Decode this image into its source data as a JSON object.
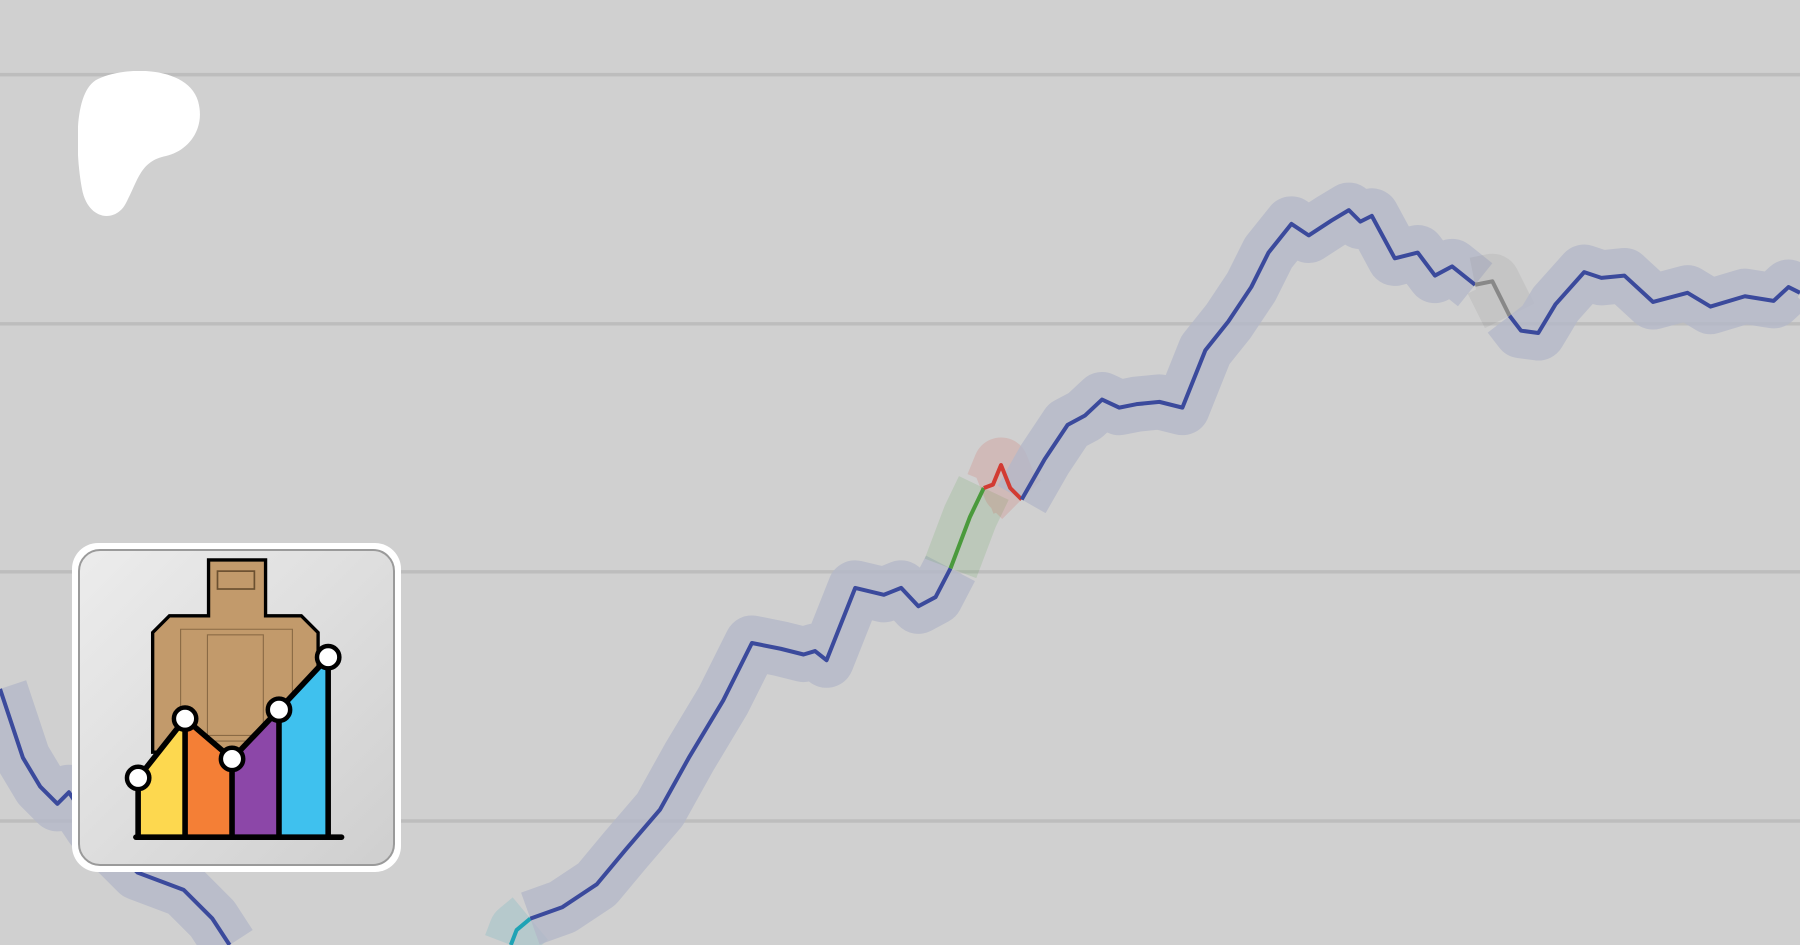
{
  "banner": {
    "brand_logo": "patreon-logo",
    "app_icon": "target-chart-icon",
    "colors": {
      "background": "#d0d0d0",
      "gridline": "#bdbdbd",
      "line": "#3b4a9c",
      "band": "#b4b8c8",
      "highlight_cyan": "#1fa3b5",
      "highlight_green": "#4a9a3c",
      "highlight_red": "#d23b32",
      "highlight_grey": "#888888"
    }
  }
}
